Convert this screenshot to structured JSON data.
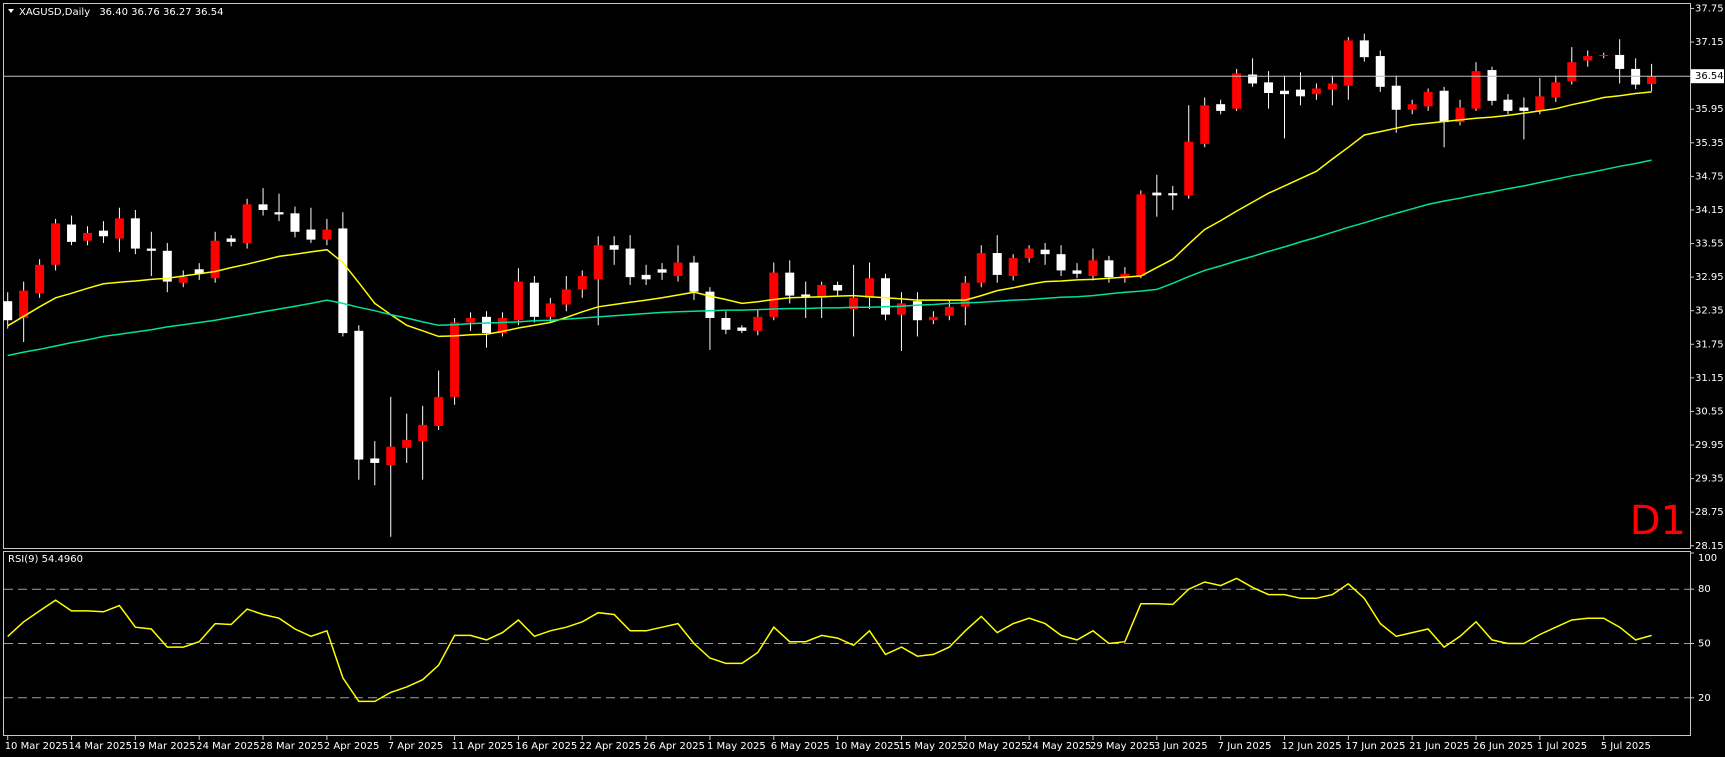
{
  "chart_data": [
    {
      "type": "candlestick",
      "title": "XAGUSD,Daily",
      "header_values": [
        "36.40",
        "36.76",
        "36.27",
        "36.54"
      ],
      "timeframe_label": "D1",
      "categories": [
        "10 Mar 2025",
        null,
        null,
        null,
        "14 Mar 2025",
        null,
        null,
        null,
        "19 Mar 2025",
        null,
        null,
        null,
        "24 Mar 2025",
        null,
        null,
        null,
        "28 Mar 2025",
        null,
        null,
        null,
        "2 Apr 2025",
        null,
        null,
        null,
        "7 Apr 2025",
        null,
        null,
        null,
        "11 Apr 2025",
        null,
        null,
        null,
        "16 Apr 2025",
        null,
        null,
        null,
        "22 Apr 2025",
        null,
        null,
        null,
        "26 Apr 2025",
        null,
        null,
        null,
        "1 May 2025",
        null,
        null,
        null,
        "6 May 2025",
        null,
        null,
        null,
        "10 May 2025",
        null,
        null,
        null,
        "15 May 2025",
        null,
        null,
        null,
        "20 May 2025",
        null,
        null,
        null,
        "24 May 2025",
        null,
        null,
        null,
        "29 May 2025",
        null,
        null,
        null,
        "3 Jun 2025",
        null,
        null,
        null,
        "7 Jun 2025",
        null,
        null,
        null,
        "12 Jun 2025",
        null,
        null,
        null,
        "17 Jun 2025",
        null,
        null,
        null,
        "21 Jun 2025",
        null,
        null,
        null,
        "26 Jun 2025",
        null,
        null,
        null,
        "1 Jul 2025",
        null,
        null,
        null,
        "5 Jul 2025",
        null,
        null,
        null
      ],
      "open": [
        32.52,
        32.22,
        32.66,
        33.17,
        33.89,
        33.6,
        33.78,
        33.64,
        34.0,
        33.46,
        33.42,
        32.85,
        33.09,
        32.93,
        33.64,
        33.56,
        34.25,
        34.11,
        34.09,
        33.8,
        33.62,
        33.82,
        31.99,
        29.71,
        29.59,
        29.9,
        30.02,
        30.29,
        30.81,
        32.14,
        32.24,
        31.95,
        32.18,
        32.85,
        32.24,
        32.46,
        32.73,
        32.91,
        33.52,
        33.46,
        32.99,
        33.09,
        32.97,
        33.21,
        32.69,
        32.22,
        32.05,
        31.99,
        32.24,
        33.03,
        32.64,
        32.58,
        32.81,
        32.38,
        32.58,
        32.93,
        32.28,
        32.52,
        32.18,
        32.26,
        32.42,
        32.85,
        33.38,
        32.97,
        33.29,
        33.44,
        33.36,
        33.07,
        32.97,
        33.25,
        32.93,
        32.97,
        34.46,
        34.45,
        34.41,
        35.33,
        36.04,
        35.96,
        36.57,
        36.43,
        36.28,
        36.3,
        36.22,
        36.3,
        36.37,
        37.18,
        36.9,
        36.37,
        35.94,
        36.0,
        36.28,
        35.72,
        35.96,
        36.65,
        36.12,
        35.98,
        35.92,
        36.16,
        36.45,
        36.82,
        36.9,
        36.92,
        36.67,
        36.4
      ],
      "high": [
        32.68,
        32.87,
        33.27,
        33.99,
        34.05,
        33.86,
        33.95,
        34.19,
        34.15,
        33.76,
        33.56,
        33.07,
        33.2,
        33.76,
        33.7,
        34.35,
        34.54,
        34.44,
        34.21,
        34.19,
        33.99,
        34.11,
        32.09,
        30.02,
        30.81,
        30.51,
        30.65,
        31.28,
        32.22,
        32.32,
        32.34,
        32.32,
        33.11,
        32.97,
        32.58,
        32.97,
        33.07,
        33.68,
        33.68,
        33.7,
        33.17,
        33.2,
        33.52,
        33.33,
        32.77,
        32.34,
        32.09,
        32.38,
        33.21,
        33.25,
        32.87,
        32.87,
        32.87,
        33.17,
        33.21,
        33.01,
        32.68,
        32.68,
        32.34,
        32.54,
        32.97,
        33.52,
        33.7,
        33.36,
        33.52,
        33.56,
        33.52,
        33.2,
        33.46,
        33.33,
        33.13,
        34.5,
        34.78,
        34.58,
        36.02,
        36.16,
        36.12,
        36.67,
        36.86,
        36.63,
        36.55,
        36.61,
        36.41,
        36.55,
        37.24,
        37.3,
        37.0,
        36.55,
        36.12,
        36.32,
        36.35,
        36.12,
        36.79,
        36.71,
        36.22,
        36.16,
        36.51,
        36.55,
        37.06,
        37.0,
        36.96,
        37.2,
        36.86,
        36.76
      ],
      "low": [
        32.03,
        31.79,
        32.58,
        33.07,
        33.52,
        33.52,
        33.56,
        33.4,
        33.36,
        32.97,
        32.68,
        32.77,
        32.9,
        32.85,
        33.5,
        33.46,
        34.05,
        33.95,
        33.66,
        33.56,
        33.52,
        31.89,
        29.33,
        29.23,
        28.31,
        29.63,
        29.33,
        30.22,
        30.67,
        31.99,
        31.69,
        31.89,
        32.09,
        32.14,
        32.14,
        32.34,
        32.58,
        32.09,
        33.17,
        32.81,
        32.81,
        32.9,
        32.87,
        32.54,
        31.65,
        31.93,
        31.95,
        31.91,
        32.18,
        32.48,
        32.22,
        32.22,
        32.62,
        31.89,
        32.38,
        32.18,
        31.63,
        31.89,
        32.11,
        32.18,
        32.09,
        32.77,
        32.85,
        32.89,
        33.21,
        33.17,
        32.97,
        32.93,
        32.89,
        32.85,
        32.85,
        32.93,
        34.03,
        34.15,
        34.35,
        35.27,
        35.86,
        35.92,
        36.35,
        35.96,
        35.43,
        36.02,
        36.12,
        36.02,
        36.12,
        36.8,
        36.26,
        35.53,
        35.86,
        35.92,
        35.27,
        35.66,
        35.92,
        36.02,
        35.86,
        35.41,
        35.86,
        36.08,
        36.39,
        36.71,
        36.86,
        36.41,
        36.31,
        36.27
      ],
      "close": [
        32.18,
        32.71,
        33.17,
        33.91,
        33.58,
        33.74,
        33.68,
        34.0,
        33.46,
        33.42,
        32.87,
        32.95,
        33.01,
        33.6,
        33.58,
        34.25,
        34.15,
        34.07,
        33.76,
        33.62,
        33.8,
        31.95,
        29.69,
        29.63,
        29.92,
        30.04,
        30.31,
        30.81,
        32.14,
        32.22,
        31.95,
        32.22,
        32.87,
        32.24,
        32.48,
        32.73,
        32.97,
        33.52,
        33.44,
        32.95,
        32.91,
        33.03,
        33.21,
        32.69,
        32.22,
        32.01,
        31.99,
        32.24,
        33.03,
        32.62,
        32.6,
        32.81,
        32.71,
        32.58,
        32.93,
        32.28,
        32.48,
        32.18,
        32.24,
        32.42,
        32.85,
        33.38,
        32.99,
        33.29,
        33.46,
        33.36,
        33.07,
        33.01,
        33.25,
        32.95,
        33.01,
        34.43,
        34.41,
        34.41,
        35.37,
        36.02,
        35.92,
        36.59,
        36.41,
        36.24,
        36.22,
        36.18,
        36.32,
        36.41,
        37.18,
        36.88,
        36.35,
        35.94,
        36.04,
        36.26,
        35.72,
        35.98,
        36.63,
        36.1,
        35.92,
        35.92,
        36.18,
        36.43,
        36.79,
        36.9,
        36.92,
        36.67,
        36.39,
        36.54
      ],
      "up_color": "#ff0000",
      "down_color": "#ffffff",
      "wick_color": "#ffffff",
      "lines": [
        {
          "color": "#ffff00",
          "values": [
            32.08,
            32.25,
            32.42,
            32.58,
            32.66,
            32.75,
            32.83,
            32.86,
            32.88,
            32.91,
            32.93,
            32.97,
            33.01,
            33.05,
            33.12,
            33.18,
            33.25,
            33.32,
            33.36,
            33.4,
            33.44,
            33.21,
            32.85,
            32.48,
            32.28,
            32.09,
            31.99,
            31.89,
            31.9,
            31.92,
            31.93,
            31.98,
            32.04,
            32.09,
            32.14,
            32.23,
            32.33,
            32.42,
            32.46,
            32.5,
            32.54,
            32.58,
            32.63,
            32.68,
            32.61,
            32.55,
            32.48,
            32.51,
            32.55,
            32.58,
            32.59,
            32.6,
            32.61,
            32.62,
            32.6,
            32.58,
            32.56,
            32.54,
            32.54,
            32.54,
            32.54,
            32.62,
            32.71,
            32.76,
            32.82,
            32.87,
            32.88,
            32.9,
            32.91,
            32.93,
            32.95,
            32.97,
            33.12,
            33.27,
            33.54,
            33.8,
            33.96,
            34.13,
            34.29,
            34.45,
            34.58,
            34.71,
            34.84,
            35.06,
            35.27,
            35.49,
            35.55,
            35.61,
            35.67,
            35.7,
            35.73,
            35.76,
            35.79,
            35.81,
            35.84,
            35.88,
            35.92,
            35.96,
            36.03,
            36.09,
            36.16,
            36.19,
            36.23,
            36.26
          ]
        },
        {
          "color": "#00e0a0",
          "values": [
            31.55,
            31.61,
            31.66,
            31.72,
            31.78,
            31.83,
            31.89,
            31.93,
            31.97,
            32.01,
            32.06,
            32.1,
            32.14,
            32.18,
            32.23,
            32.28,
            32.33,
            32.38,
            32.43,
            32.48,
            32.54,
            32.48,
            32.41,
            32.35,
            32.28,
            32.22,
            32.15,
            32.09,
            32.1,
            32.12,
            32.13,
            32.14,
            32.15,
            32.17,
            32.18,
            32.2,
            32.22,
            32.24,
            32.26,
            32.28,
            32.3,
            32.32,
            32.33,
            32.34,
            32.35,
            32.36,
            32.36,
            32.37,
            32.38,
            32.39,
            32.39,
            32.4,
            32.4,
            32.41,
            32.41,
            32.42,
            32.43,
            32.45,
            32.46,
            32.48,
            32.49,
            32.5,
            32.52,
            32.54,
            32.55,
            32.57,
            32.59,
            32.6,
            32.62,
            32.65,
            32.68,
            32.7,
            32.73,
            32.84,
            32.96,
            33.07,
            33.15,
            33.24,
            33.32,
            33.41,
            33.49,
            33.58,
            33.66,
            33.75,
            33.84,
            33.92,
            34.01,
            34.09,
            34.17,
            34.25,
            34.31,
            34.36,
            34.42,
            34.47,
            34.53,
            34.58,
            34.64,
            34.7,
            34.76,
            34.81,
            34.87,
            34.93,
            34.98,
            35.04
          ]
        }
      ],
      "ylim": [
        28.11,
        37.83
      ],
      "yticks": [
        37.75,
        37.15,
        35.95,
        35.35,
        34.75,
        34.15,
        33.55,
        32.95,
        32.35,
        31.75,
        31.15,
        30.55,
        29.95,
        29.35,
        28.75,
        28.15
      ],
      "last_price": {
        "value": 36.54,
        "label": "36.54"
      }
    },
    {
      "type": "line",
      "title": "RSI(9)",
      "last_value_label": "54.4960",
      "color": "#ffff00",
      "values": [
        53.9,
        62,
        68,
        74,
        68,
        68,
        67.5,
        71,
        59,
        58,
        48,
        48,
        51,
        61,
        60.5,
        69,
        66,
        64,
        58,
        54,
        57,
        31,
        18,
        18,
        23,
        26,
        30,
        38,
        54.5,
        54.5,
        52,
        56,
        63,
        54,
        57,
        59,
        62,
        67,
        66,
        57,
        57,
        59,
        61,
        50,
        42,
        39,
        39,
        45,
        59,
        51,
        51,
        54.5,
        53,
        49,
        57,
        44,
        48,
        43,
        44,
        48,
        57,
        65,
        56,
        61,
        64,
        61,
        54.5,
        52,
        57,
        50,
        51,
        72,
        72,
        71.6,
        80,
        84,
        82,
        86,
        81,
        77,
        77,
        75,
        75,
        77,
        83,
        75,
        61,
        54,
        56,
        58,
        48,
        54,
        62,
        52,
        50,
        50,
        55,
        59,
        63,
        64,
        64,
        59,
        52,
        54.496
      ],
      "ylim": [
        0,
        100
      ],
      "yticks": [
        100,
        80,
        50,
        20
      ],
      "levels": [
        80,
        50,
        20
      ]
    }
  ]
}
